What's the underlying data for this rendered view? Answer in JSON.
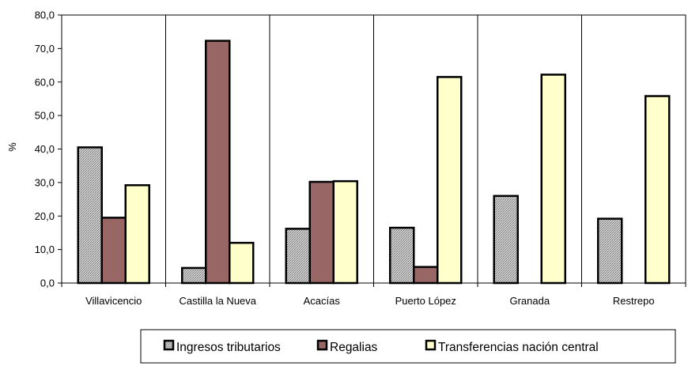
{
  "chart_data": {
    "type": "bar",
    "title": "",
    "xlabel": "",
    "ylabel": "%",
    "ylim": [
      0,
      80
    ],
    "yticks": [
      "0,0",
      "10,0",
      "20,0",
      "30,0",
      "40,0",
      "50,0",
      "60,0",
      "70,0",
      "80,0"
    ],
    "grid": "vertical separators between categories",
    "legend_position": "bottom",
    "categories": [
      "Villavicencio",
      "Castilla la Nueva",
      "Acacías",
      "Puerto López",
      "Granada",
      "Restrepo"
    ],
    "series": [
      {
        "name": "Ingresos tributarios",
        "color": "#b8b8b8",
        "pattern": "dotted-gray",
        "values": [
          40.5,
          4.5,
          16.2,
          16.5,
          26.0,
          19.2
        ]
      },
      {
        "name": "Regalias",
        "color": "#996666",
        "pattern": "solid",
        "values": [
          19.5,
          72.3,
          30.2,
          4.8,
          0,
          0
        ]
      },
      {
        "name": "Transferencias nación central",
        "color": "#ffffcc",
        "pattern": "solid",
        "values": [
          29.2,
          12.0,
          30.4,
          61.5,
          62.2,
          55.8
        ]
      }
    ]
  }
}
